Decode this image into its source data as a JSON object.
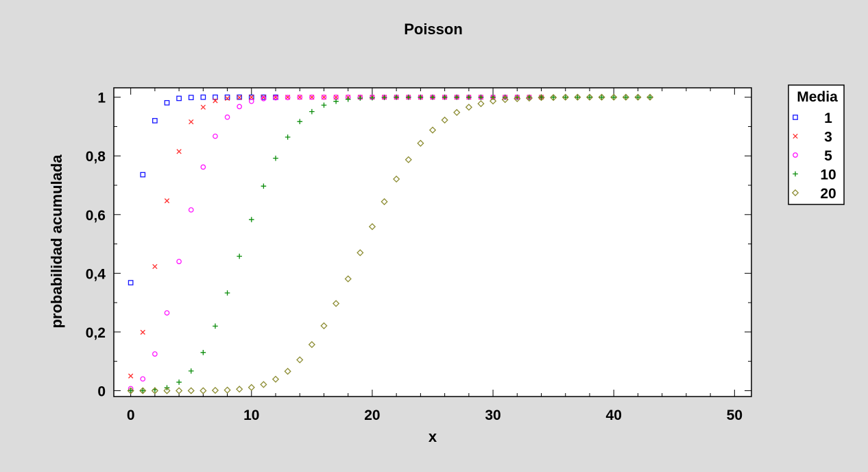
{
  "chart_data": {
    "type": "scatter",
    "title": "Poisson",
    "xlabel": "x",
    "ylabel": "probabilidad acumulada",
    "xlim": [
      -1.4,
      51.4
    ],
    "ylim": [
      -0.02,
      1.032
    ],
    "xticks": [
      0,
      10,
      20,
      30,
      40,
      50
    ],
    "yticks": [
      0,
      0.2,
      0.4,
      0.6,
      0.8,
      1
    ],
    "ytick_labels": [
      "0",
      "0,2",
      "0,4",
      "0,6",
      "0,8",
      "1"
    ],
    "grid": false,
    "legend": {
      "title": "Media",
      "placement": "right-outside-top"
    },
    "series": [
      {
        "name": "1",
        "marker": "square",
        "color": "#1414ff",
        "x": [
          0,
          1,
          2,
          3,
          4,
          5,
          6,
          7,
          8,
          9,
          10,
          11,
          12
        ],
        "y": [
          0.368,
          0.736,
          0.92,
          0.981,
          0.996,
          0.999,
          1.0,
          1.0,
          1.0,
          1.0,
          1.0,
          1.0,
          1.0
        ]
      },
      {
        "name": "3",
        "marker": "x",
        "color": "#ff3030",
        "x": [
          0,
          1,
          2,
          3,
          4,
          5,
          6,
          7,
          8,
          9,
          10,
          11,
          12,
          13,
          14,
          15,
          16,
          17,
          18,
          19,
          20,
          21,
          22,
          23,
          24,
          25,
          26,
          27,
          28,
          29,
          30,
          31,
          32,
          33,
          34
        ],
        "y": [
          0.05,
          0.199,
          0.423,
          0.647,
          0.815,
          0.916,
          0.966,
          0.988,
          0.996,
          0.999,
          1.0,
          1.0,
          1.0,
          1.0,
          1.0,
          1.0,
          1.0,
          1.0,
          1.0,
          1.0,
          1.0,
          1.0,
          1.0,
          1.0,
          1.0,
          1.0,
          1.0,
          1.0,
          1.0,
          1.0,
          1.0,
          1.0,
          1.0,
          1.0,
          1.0
        ]
      },
      {
        "name": "5",
        "marker": "circle",
        "color": "#ff14ff",
        "x": [
          0,
          1,
          2,
          3,
          4,
          5,
          6,
          7,
          8,
          9,
          10,
          11,
          12,
          13,
          14,
          15,
          16,
          17,
          18,
          19,
          20,
          21,
          22,
          23,
          24,
          25,
          26,
          27,
          28,
          29,
          30,
          31,
          32,
          33,
          34
        ],
        "y": [
          0.007,
          0.04,
          0.125,
          0.265,
          0.44,
          0.616,
          0.762,
          0.867,
          0.932,
          0.968,
          0.986,
          0.995,
          0.998,
          0.999,
          1.0,
          1.0,
          1.0,
          1.0,
          1.0,
          1.0,
          1.0,
          1.0,
          1.0,
          1.0,
          1.0,
          1.0,
          1.0,
          1.0,
          1.0,
          1.0,
          1.0,
          1.0,
          1.0,
          1.0,
          1.0
        ]
      },
      {
        "name": "10",
        "marker": "plus",
        "color": "#0a8c0a",
        "x": [
          0,
          1,
          2,
          3,
          4,
          5,
          6,
          7,
          8,
          9,
          10,
          11,
          12,
          13,
          14,
          15,
          16,
          17,
          18,
          19,
          20,
          21,
          22,
          23,
          24,
          25,
          26,
          27,
          28,
          29,
          30,
          31,
          32,
          33,
          34,
          35,
          36,
          37,
          38,
          39,
          40,
          41,
          42,
          43
        ],
        "y": [
          0.0,
          0.0,
          0.003,
          0.01,
          0.029,
          0.067,
          0.13,
          0.22,
          0.333,
          0.458,
          0.583,
          0.697,
          0.792,
          0.864,
          0.917,
          0.951,
          0.973,
          0.986,
          0.993,
          0.997,
          0.998,
          0.999,
          1.0,
          1.0,
          1.0,
          1.0,
          1.0,
          1.0,
          1.0,
          1.0,
          1.0,
          1.0,
          1.0,
          1.0,
          1.0,
          1.0,
          1.0,
          1.0,
          1.0,
          1.0,
          1.0,
          1.0,
          1.0,
          1.0
        ]
      },
      {
        "name": "20",
        "marker": "diamond",
        "color": "#8c8c32",
        "x": [
          0,
          1,
          2,
          3,
          4,
          5,
          6,
          7,
          8,
          9,
          10,
          11,
          12,
          13,
          14,
          15,
          16,
          17,
          18,
          19,
          20,
          21,
          22,
          23,
          24,
          25,
          26,
          27,
          28,
          29,
          30,
          31,
          32,
          33,
          34,
          35,
          36,
          37,
          38,
          39,
          40,
          41,
          42,
          43
        ],
        "y": [
          0.0,
          0.0,
          0.0,
          0.0,
          0.0,
          0.0,
          0.0,
          0.001,
          0.002,
          0.005,
          0.011,
          0.021,
          0.039,
          0.066,
          0.105,
          0.157,
          0.221,
          0.297,
          0.381,
          0.47,
          0.559,
          0.644,
          0.721,
          0.787,
          0.843,
          0.888,
          0.922,
          0.948,
          0.966,
          0.978,
          0.987,
          0.992,
          0.995,
          0.997,
          0.999,
          0.999,
          1.0,
          1.0,
          1.0,
          1.0,
          1.0,
          1.0,
          1.0,
          1.0
        ]
      }
    ]
  }
}
